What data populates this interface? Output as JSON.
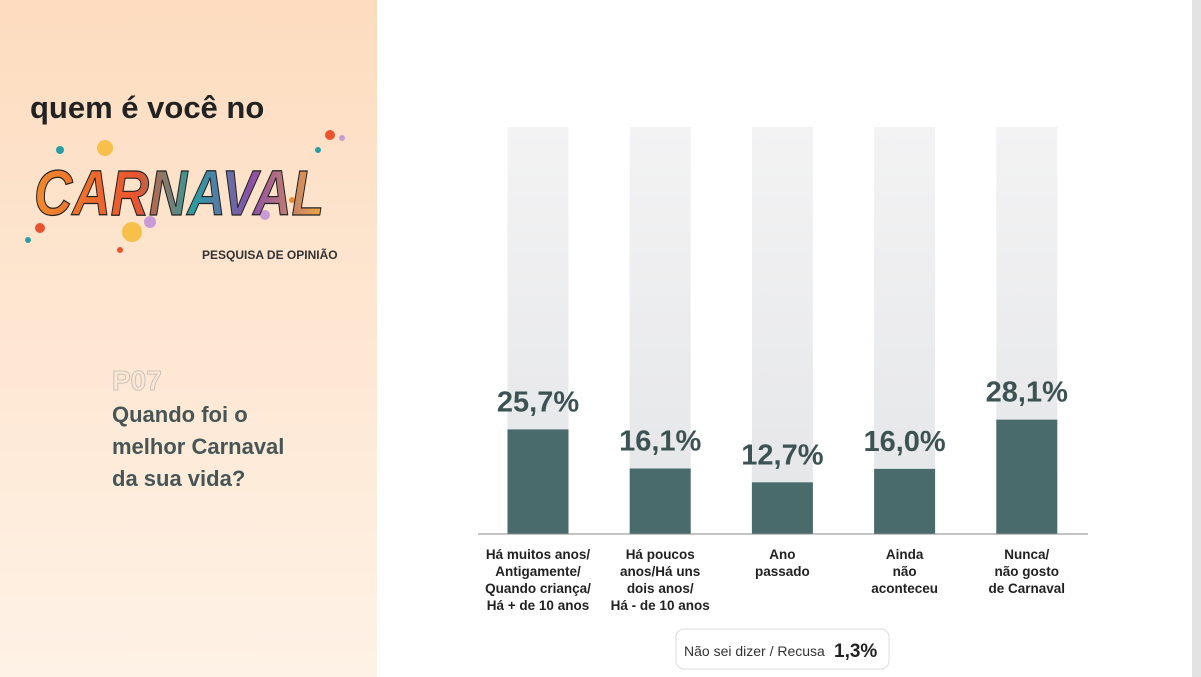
{
  "header": {
    "title": "quem é você no",
    "logo_word": "CARNAVAL",
    "subtitle": "PESQUISA DE OPINIÃO"
  },
  "question": {
    "code": "P07",
    "lines": [
      "Quando foi o",
      "melhor Carnaval",
      "da sua vida?"
    ]
  },
  "chart_data": {
    "type": "bar",
    "categories": [
      [
        "Há muitos anos/",
        "Antigamente/",
        "Quando criança/",
        "Há + de 10 anos"
      ],
      [
        "Há poucos",
        "anos/Há uns",
        "dois anos/",
        "Há - de 10 anos"
      ],
      [
        "Ano",
        "passado"
      ],
      [
        "Ainda",
        "não",
        "aconteceu"
      ],
      [
        "Nunca/",
        "não gosto",
        "de Carnaval"
      ]
    ],
    "values": [
      25.7,
      16.1,
      12.7,
      16.0,
      28.1
    ],
    "value_labels": [
      "25,7%",
      "16,1%",
      "12,7%",
      "16,0%",
      "28,1%"
    ],
    "color": "#4a6b6b",
    "track_color": "#ebebec",
    "ylim": [
      0,
      100
    ],
    "note": {
      "label": "Não sei dizer / Recusa",
      "value": 1.3,
      "value_label": "1,3%"
    }
  }
}
